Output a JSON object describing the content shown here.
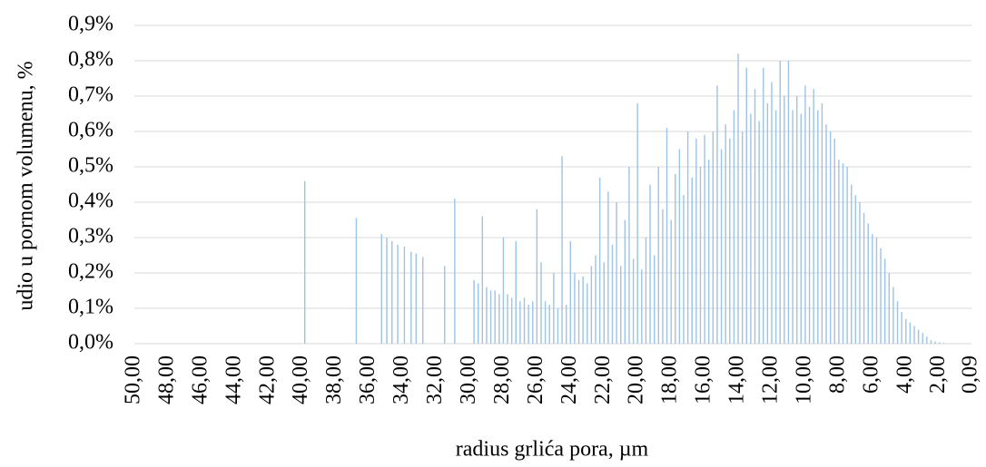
{
  "chart_data": {
    "type": "bar",
    "xlabel": "radius grlića pora, µm",
    "ylabel": "udio u pornom volumenu, %",
    "color": "#9dc3e6",
    "grid": true,
    "xlim": [
      50,
      0.09
    ],
    "xticks": [
      {
        "value": 50,
        "label": "50,00"
      },
      {
        "value": 48,
        "label": "48,00"
      },
      {
        "value": 46,
        "label": "46,00"
      },
      {
        "value": 44,
        "label": "44,00"
      },
      {
        "value": 42,
        "label": "42,00"
      },
      {
        "value": 40,
        "label": "40,00"
      },
      {
        "value": 38,
        "label": "38,00"
      },
      {
        "value": 36,
        "label": "36,00"
      },
      {
        "value": 34,
        "label": "34,00"
      },
      {
        "value": 32,
        "label": "32,00"
      },
      {
        "value": 30,
        "label": "30,00"
      },
      {
        "value": 28,
        "label": "28,00"
      },
      {
        "value": 26,
        "label": "26,00"
      },
      {
        "value": 24,
        "label": "24,00"
      },
      {
        "value": 22,
        "label": "22,00"
      },
      {
        "value": 20,
        "label": "20,00"
      },
      {
        "value": 18,
        "label": "18,00"
      },
      {
        "value": 16,
        "label": "16,00"
      },
      {
        "value": 14,
        "label": "14,00"
      },
      {
        "value": 12,
        "label": "12,00"
      },
      {
        "value": 10,
        "label": "10,00"
      },
      {
        "value": 8,
        "label": "8,00"
      },
      {
        "value": 6,
        "label": "6,00"
      },
      {
        "value": 4,
        "label": "4,00"
      },
      {
        "value": 2,
        "label": "2,00"
      },
      {
        "value": 0.09,
        "label": "0,09"
      }
    ],
    "ylim": [
      0,
      0.9
    ],
    "yticks": [
      {
        "value": 0,
        "label": "0,0%"
      },
      {
        "value": 0.1,
        "label": "0,1%"
      },
      {
        "value": 0.2,
        "label": "0,2%"
      },
      {
        "value": 0.3,
        "label": "0,3%"
      },
      {
        "value": 0.4,
        "label": "0,4%"
      },
      {
        "value": 0.5,
        "label": "0,5%"
      },
      {
        "value": 0.6,
        "label": "0,6%"
      },
      {
        "value": 0.7,
        "label": "0,7%"
      },
      {
        "value": 0.8,
        "label": "0,8%"
      },
      {
        "value": 0.9,
        "label": "0,9%"
      }
    ],
    "x": [
      39.84,
      36.77,
      35.26,
      34.95,
      34.64,
      34.3,
      33.9,
      33.5,
      33.2,
      32.8,
      31.5,
      30.9,
      29.75,
      29.5,
      29.25,
      29.0,
      28.75,
      28.5,
      28.25,
      28.0,
      27.75,
      27.5,
      27.25,
      27.0,
      26.75,
      26.5,
      26.25,
      26.0,
      25.75,
      25.5,
      25.25,
      25.0,
      24.75,
      24.5,
      24.25,
      24.0,
      23.75,
      23.5,
      23.25,
      23.0,
      22.75,
      22.5,
      22.25,
      22.0,
      21.75,
      21.5,
      21.25,
      21.0,
      20.75,
      20.5,
      20.25,
      20.0,
      19.75,
      19.5,
      19.25,
      19.0,
      18.75,
      18.5,
      18.25,
      18.0,
      17.75,
      17.5,
      17.25,
      17.0,
      16.75,
      16.5,
      16.25,
      16.0,
      15.75,
      15.5,
      15.25,
      15.0,
      14.75,
      14.5,
      14.25,
      14.0,
      13.75,
      13.5,
      13.25,
      13.0,
      12.75,
      12.5,
      12.25,
      12.0,
      11.75,
      11.5,
      11.25,
      11.0,
      10.75,
      10.5,
      10.25,
      10.0,
      9.75,
      9.5,
      9.25,
      9.0,
      8.75,
      8.5,
      8.25,
      8.0,
      7.75,
      7.5,
      7.25,
      7.0,
      6.75,
      6.5,
      6.25,
      6.0,
      5.75,
      5.5,
      5.25,
      5.0,
      4.75,
      4.5,
      4.25,
      4.0,
      3.75,
      3.5,
      3.25,
      3.0,
      2.75,
      2.5,
      2.25,
      2.0,
      1.75
    ],
    "values": [
      0.46,
      0.355,
      0.31,
      0.3,
      0.29,
      0.28,
      0.275,
      0.26,
      0.255,
      0.245,
      0.22,
      0.41,
      0.18,
      0.17,
      0.36,
      0.16,
      0.15,
      0.15,
      0.14,
      0.3,
      0.14,
      0.13,
      0.29,
      0.12,
      0.13,
      0.11,
      0.12,
      0.38,
      0.23,
      0.12,
      0.11,
      0.2,
      0.1,
      0.53,
      0.11,
      0.29,
      0.2,
      0.18,
      0.19,
      0.17,
      0.22,
      0.25,
      0.47,
      0.23,
      0.43,
      0.28,
      0.4,
      0.22,
      0.35,
      0.5,
      0.24,
      0.68,
      0.21,
      0.3,
      0.45,
      0.25,
      0.5,
      0.38,
      0.61,
      0.35,
      0.48,
      0.55,
      0.42,
      0.6,
      0.47,
      0.58,
      0.5,
      0.59,
      0.52,
      0.6,
      0.73,
      0.55,
      0.62,
      0.58,
      0.66,
      0.82,
      0.6,
      0.78,
      0.65,
      0.72,
      0.63,
      0.78,
      0.68,
      0.74,
      0.66,
      0.8,
      0.7,
      0.8,
      0.66,
      0.7,
      0.65,
      0.73,
      0.67,
      0.72,
      0.66,
      0.68,
      0.62,
      0.6,
      0.58,
      0.52,
      0.51,
      0.5,
      0.45,
      0.42,
      0.4,
      0.37,
      0.34,
      0.31,
      0.3,
      0.27,
      0.24,
      0.2,
      0.16,
      0.12,
      0.09,
      0.07,
      0.06,
      0.05,
      0.04,
      0.03,
      0.02,
      0.01,
      0.006,
      0.004,
      0.002
    ]
  }
}
